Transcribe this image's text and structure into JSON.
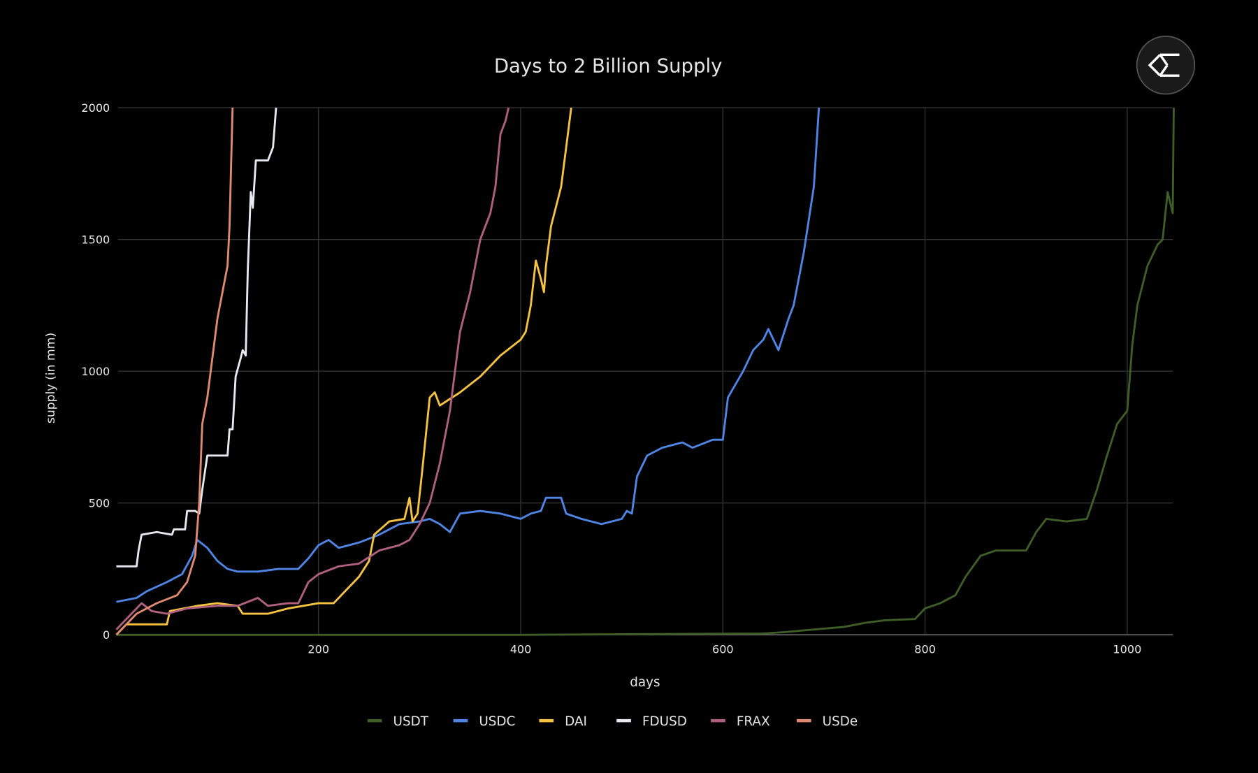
{
  "chart_data": {
    "type": "line",
    "title": "Days to 2 Billion Supply",
    "xlabel": "days",
    "ylabel": "supply (in mm)",
    "xlim": [
      0,
      1046
    ],
    "ylim": [
      0,
      2000
    ],
    "x_ticks": [
      "200",
      "400",
      "600",
      "800",
      "1000"
    ],
    "y_ticks": [
      "0",
      "500",
      "1000",
      "1500",
      "2000"
    ],
    "grid": true,
    "legend_placement": "bottom",
    "series": [
      {
        "name": "USDT",
        "color": "#3f5e27",
        "points": [
          [
            0,
            0
          ],
          [
            400,
            0
          ],
          [
            500,
            2
          ],
          [
            640,
            5
          ],
          [
            660,
            10
          ],
          [
            690,
            20
          ],
          [
            720,
            30
          ],
          [
            740,
            45
          ],
          [
            760,
            55
          ],
          [
            790,
            60
          ],
          [
            800,
            100
          ],
          [
            815,
            120
          ],
          [
            830,
            150
          ],
          [
            840,
            220
          ],
          [
            855,
            300
          ],
          [
            870,
            320
          ],
          [
            900,
            320
          ],
          [
            910,
            390
          ],
          [
            920,
            440
          ],
          [
            940,
            430
          ],
          [
            960,
            440
          ],
          [
            970,
            550
          ],
          [
            980,
            680
          ],
          [
            990,
            800
          ],
          [
            1000,
            850
          ],
          [
            1005,
            1100
          ],
          [
            1010,
            1250
          ],
          [
            1020,
            1400
          ],
          [
            1030,
            1480
          ],
          [
            1035,
            1500
          ],
          [
            1040,
            1680
          ],
          [
            1045,
            1600
          ],
          [
            1046,
            2000
          ]
        ]
      },
      {
        "name": "USDC",
        "color": "#4f86e6",
        "points": [
          [
            0,
            125
          ],
          [
            20,
            140
          ],
          [
            30,
            165
          ],
          [
            50,
            200
          ],
          [
            65,
            230
          ],
          [
            75,
            300
          ],
          [
            80,
            360
          ],
          [
            90,
            330
          ],
          [
            100,
            280
          ],
          [
            110,
            250
          ],
          [
            120,
            240
          ],
          [
            140,
            240
          ],
          [
            160,
            250
          ],
          [
            180,
            250
          ],
          [
            190,
            290
          ],
          [
            200,
            340
          ],
          [
            210,
            360
          ],
          [
            220,
            330
          ],
          [
            240,
            350
          ],
          [
            260,
            380
          ],
          [
            280,
            420
          ],
          [
            300,
            430
          ],
          [
            310,
            440
          ],
          [
            320,
            420
          ],
          [
            330,
            390
          ],
          [
            340,
            460
          ],
          [
            360,
            470
          ],
          [
            380,
            460
          ],
          [
            400,
            440
          ],
          [
            410,
            460
          ],
          [
            420,
            470
          ],
          [
            425,
            520
          ],
          [
            440,
            520
          ],
          [
            445,
            460
          ],
          [
            460,
            440
          ],
          [
            480,
            420
          ],
          [
            500,
            440
          ],
          [
            505,
            470
          ],
          [
            510,
            460
          ],
          [
            515,
            600
          ],
          [
            525,
            680
          ],
          [
            540,
            710
          ],
          [
            560,
            730
          ],
          [
            570,
            710
          ],
          [
            590,
            740
          ],
          [
            600,
            740
          ],
          [
            605,
            900
          ],
          [
            620,
            1000
          ],
          [
            630,
            1080
          ],
          [
            640,
            1120
          ],
          [
            645,
            1160
          ],
          [
            655,
            1080
          ],
          [
            665,
            1200
          ],
          [
            670,
            1250
          ],
          [
            680,
            1450
          ],
          [
            690,
            1700
          ],
          [
            695,
            2000
          ]
        ]
      },
      {
        "name": "DAI",
        "color": "#f5c341",
        "points": [
          [
            0,
            0
          ],
          [
            10,
            40
          ],
          [
            50,
            40
          ],
          [
            53,
            90
          ],
          [
            80,
            110
          ],
          [
            100,
            120
          ],
          [
            120,
            110
          ],
          [
            125,
            80
          ],
          [
            150,
            80
          ],
          [
            170,
            100
          ],
          [
            200,
            120
          ],
          [
            215,
            120
          ],
          [
            225,
            160
          ],
          [
            240,
            220
          ],
          [
            250,
            280
          ],
          [
            255,
            380
          ],
          [
            270,
            430
          ],
          [
            285,
            440
          ],
          [
            290,
            520
          ],
          [
            293,
            430
          ],
          [
            298,
            460
          ],
          [
            302,
            600
          ],
          [
            310,
            900
          ],
          [
            315,
            920
          ],
          [
            320,
            870
          ],
          [
            340,
            920
          ],
          [
            360,
            980
          ],
          [
            380,
            1060
          ],
          [
            400,
            1120
          ],
          [
            405,
            1150
          ],
          [
            410,
            1250
          ],
          [
            415,
            1420
          ],
          [
            420,
            1350
          ],
          [
            423,
            1300
          ],
          [
            425,
            1400
          ],
          [
            430,
            1550
          ],
          [
            440,
            1700
          ],
          [
            445,
            1850
          ],
          [
            450,
            2000
          ]
        ]
      },
      {
        "name": "FDUSD",
        "color": "#e8e8f0",
        "points": [
          [
            0,
            260
          ],
          [
            20,
            260
          ],
          [
            22,
            320
          ],
          [
            25,
            380
          ],
          [
            40,
            390
          ],
          [
            55,
            380
          ],
          [
            57,
            400
          ],
          [
            68,
            400
          ],
          [
            70,
            470
          ],
          [
            78,
            470
          ],
          [
            82,
            460
          ],
          [
            85,
            550
          ],
          [
            90,
            680
          ],
          [
            110,
            680
          ],
          [
            112,
            780
          ],
          [
            115,
            780
          ],
          [
            118,
            980
          ],
          [
            123,
            1050
          ],
          [
            125,
            1080
          ],
          [
            128,
            1060
          ],
          [
            130,
            1380
          ],
          [
            133,
            1680
          ],
          [
            135,
            1620
          ],
          [
            138,
            1800
          ],
          [
            150,
            1800
          ],
          [
            155,
            1850
          ],
          [
            158,
            2000
          ]
        ]
      },
      {
        "name": "FRAX",
        "color": "#b0607f",
        "points": [
          [
            0,
            20
          ],
          [
            15,
            80
          ],
          [
            25,
            120
          ],
          [
            35,
            90
          ],
          [
            50,
            80
          ],
          [
            70,
            100
          ],
          [
            100,
            110
          ],
          [
            120,
            110
          ],
          [
            140,
            140
          ],
          [
            150,
            110
          ],
          [
            170,
            120
          ],
          [
            180,
            120
          ],
          [
            190,
            200
          ],
          [
            200,
            230
          ],
          [
            220,
            260
          ],
          [
            240,
            270
          ],
          [
            260,
            320
          ],
          [
            280,
            340
          ],
          [
            290,
            360
          ],
          [
            300,
            420
          ],
          [
            310,
            500
          ],
          [
            320,
            650
          ],
          [
            330,
            850
          ],
          [
            335,
            1000
          ],
          [
            340,
            1150
          ],
          [
            350,
            1300
          ],
          [
            360,
            1500
          ],
          [
            370,
            1600
          ],
          [
            375,
            1700
          ],
          [
            380,
            1900
          ],
          [
            385,
            1950
          ],
          [
            388,
            2000
          ]
        ]
      },
      {
        "name": "USDe",
        "color": "#e08a70",
        "points": [
          [
            0,
            0
          ],
          [
            20,
            80
          ],
          [
            40,
            120
          ],
          [
            60,
            150
          ],
          [
            70,
            200
          ],
          [
            78,
            300
          ],
          [
            82,
            500
          ],
          [
            85,
            800
          ],
          [
            90,
            900
          ],
          [
            95,
            1050
          ],
          [
            100,
            1200
          ],
          [
            105,
            1300
          ],
          [
            110,
            1400
          ],
          [
            112,
            1550
          ],
          [
            115,
            2000
          ]
        ]
      }
    ]
  },
  "logo": {
    "icon": "sigma-diamond-logo-icon"
  }
}
